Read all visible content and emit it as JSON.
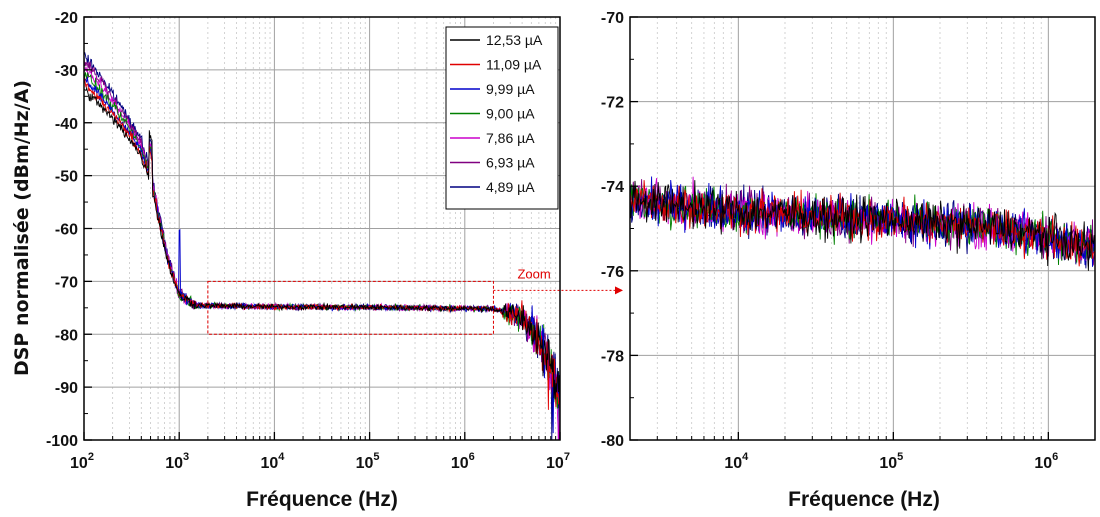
{
  "chart_data": [
    {
      "type": "line",
      "xlabel": "Fréquence (Hz)",
      "ylabel": "DSP normalisée (dBm/Hz/A)",
      "xscale": "log",
      "xlim": [
        100,
        10000000
      ],
      "ylim": [
        -100,
        -20
      ],
      "x_ticks": [
        100,
        1000,
        10000,
        100000,
        1000000,
        10000000
      ],
      "x_tick_labels": [
        {
          "base": "10",
          "exp": "2"
        },
        {
          "base": "10",
          "exp": "3"
        },
        {
          "base": "10",
          "exp": "4"
        },
        {
          "base": "10",
          "exp": "5"
        },
        {
          "base": "10",
          "exp": "6"
        },
        {
          "base": "10",
          "exp": "7"
        }
      ],
      "y_ticks": [
        -20,
        -30,
        -40,
        -50,
        -60,
        -70,
        -80,
        -90,
        -100
      ],
      "y_tick_labels": [
        "-20",
        "-30",
        "-40",
        "-50",
        "-60",
        "-70",
        "-80",
        "-90",
        "-100"
      ],
      "grid": true,
      "legend_position": "top-right",
      "series": [
        {
          "name": "12,53 µA",
          "color": "#000000"
        },
        {
          "name": "11,09 µA",
          "color": "#e00000"
        },
        {
          "name": "9,99 µA",
          "color": "#0000cc"
        },
        {
          "name": "9,00 µA",
          "color": "#008000"
        },
        {
          "name": "7,86 µA",
          "color": "#cc00cc"
        },
        {
          "name": "6,93 µA",
          "color": "#800080"
        },
        {
          "name": "4,89 µA",
          "color": "#000080"
        }
      ],
      "curve": {
        "x": [
          100,
          150,
          200,
          300,
          400,
          500,
          600,
          700,
          800,
          1000,
          1500,
          2000,
          5000,
          10000,
          100000,
          1000000,
          2000000,
          3000000,
          4000000,
          5000000,
          6000000,
          7000000,
          8000000,
          10000000
        ],
        "y": [
          -30.5,
          -34,
          -37,
          -41,
          -45,
          -50,
          -57,
          -63,
          -67,
          -72.5,
          -74.5,
          -74.6,
          -74.7,
          -74.8,
          -74.9,
          -75.1,
          -75.2,
          -76,
          -77,
          -79,
          -81,
          -84,
          -86,
          -92
        ]
      },
      "annotations": [
        {
          "text": "Zoom",
          "box_x": [
            2000,
            2000000
          ],
          "box_y": [
            -80,
            -70
          ],
          "color": "#e00000"
        }
      ]
    },
    {
      "type": "line",
      "xlabel": "Fréquence (Hz)",
      "ylabel": "",
      "xscale": "log",
      "xlim": [
        2000,
        2000000
      ],
      "ylim": [
        -80,
        -70
      ],
      "x_ticks": [
        10000,
        100000,
        1000000
      ],
      "x_tick_labels": [
        {
          "base": "10",
          "exp": "4"
        },
        {
          "base": "10",
          "exp": "5"
        },
        {
          "base": "10",
          "exp": "6"
        }
      ],
      "y_ticks": [
        -70,
        -72,
        -74,
        -76,
        -78,
        -80
      ],
      "y_tick_labels": [
        "-70",
        "-72",
        "-74",
        "-76",
        "-78",
        "-80"
      ],
      "grid": true,
      "series_colors": [
        "#000000",
        "#e00000",
        "#0000cc",
        "#008000",
        "#cc00cc",
        "#800080",
        "#000080"
      ],
      "curve": {
        "x": [
          2000,
          10000,
          100000,
          500000,
          1000000,
          2000000
        ],
        "y": [
          -74.3,
          -74.6,
          -74.8,
          -75.0,
          -75.2,
          -75.5
        ]
      }
    }
  ]
}
